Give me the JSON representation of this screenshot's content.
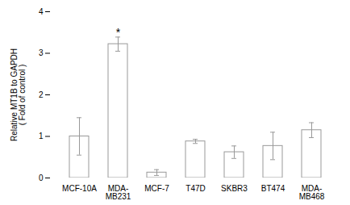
{
  "chart_data": {
    "type": "bar",
    "categories": [
      "MCF-10A",
      "MDA-\nMB231",
      "MCF-7",
      "T47D",
      "SKBR3",
      "BT474",
      "MDA-\nMB468"
    ],
    "values": [
      1.0,
      3.22,
      0.13,
      0.88,
      0.62,
      0.77,
      1.15
    ],
    "errors": [
      0.45,
      0.17,
      0.07,
      0.05,
      0.15,
      0.33,
      0.18
    ],
    "color": "#ffffff",
    "edge_color": "#999999",
    "ylabel": "Relative MT1B to GAPDH\n( Fold of control )",
    "ylim": [
      0,
      4
    ],
    "yticks": [
      0,
      1,
      2,
      3,
      4
    ],
    "annotations": [
      {
        "text": "*",
        "category": "MDA-\nMB231"
      }
    ],
    "grid": false
  }
}
